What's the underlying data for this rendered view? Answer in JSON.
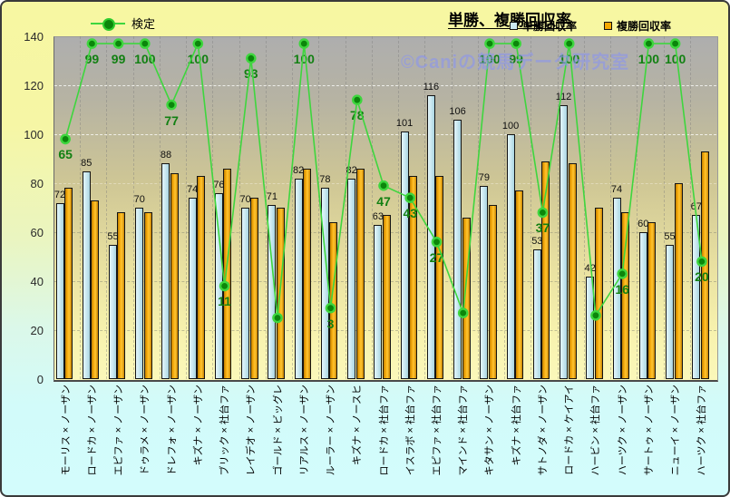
{
  "title": "単勝、複勝回収率",
  "watermark": "©Caniの競馬データ研究室",
  "legend": {
    "test": "検定",
    "win": "単勝回収率",
    "place": "複勝回収率"
  },
  "colors": {
    "line": "#3ed63e",
    "dot": "#0b860b",
    "test_label": "#128012",
    "bar_win": "#cdeaf2",
    "bar_place": "#f5a800",
    "watermark": "#8b95ee"
  },
  "chart_data": {
    "type": "bar",
    "title": "単勝、複勝回収率",
    "ylim": [
      0,
      140
    ],
    "yticks": [
      0,
      20,
      40,
      60,
      80,
      100,
      120,
      140
    ],
    "grid": true,
    "legend_position": "top",
    "categories": [
      "モーリス × ノーザン",
      "ロードカ × ノーザン",
      "エピファ × ノーザン",
      "ドゥラメ × ノーザン",
      "ドレフォ × ノーザン",
      "キズナ × ノーザン",
      "ブリック × 社台ファ",
      "レイデオ × ノーザン",
      "ゴールド × ビッグレ",
      "リアルス × ノーザン",
      "ルーラー × ノーザン",
      "キズナ × ノースヒ",
      "ロードカ × 社台ファ",
      "イスラボ × 社台ファ",
      "エピファ × 社台ファ",
      "マインド × 社台ファ",
      "キタサン × ノーザン",
      "キズナ × 社台ファ",
      "サトノダ × ノーザン",
      "ロードカ × ケイアイ",
      "ハービン × 社台ファ",
      "ハーツク × ノーザン",
      "サートゥ × ノーザン",
      "ニューイ × ノーザン",
      "ハーツク × 社台ファ"
    ],
    "series": [
      {
        "name": "単勝回収率",
        "type": "bar",
        "labeled": true,
        "values": [
          72,
          85,
          55,
          70,
          88,
          74,
          76,
          70,
          71,
          82,
          78,
          82,
          63,
          101,
          116,
          106,
          79,
          100,
          53,
          112,
          42,
          74,
          60,
          55,
          67
        ]
      },
      {
        "name": "複勝回収率",
        "type": "bar",
        "labeled": false,
        "values": [
          78,
          73,
          68,
          68,
          84,
          83,
          86,
          74,
          70,
          86,
          64,
          86,
          67,
          83,
          83,
          66,
          71,
          77,
          89,
          88,
          70,
          68,
          64,
          80,
          93
        ]
      },
      {
        "name": "検定",
        "type": "line",
        "labels": [
          65,
          99,
          99,
          100,
          77,
          100,
          11,
          93,
          null,
          100,
          3,
          78,
          47,
          43,
          27,
          null,
          100,
          99,
          37,
          100,
          null,
          16,
          100,
          100,
          20
        ],
        "plotted_positions": [
          98,
          137,
          137,
          137,
          112,
          137,
          38,
          131,
          25,
          137,
          29,
          114,
          79,
          74,
          56,
          27,
          137,
          137,
          68,
          137,
          26,
          43,
          137,
          137,
          48
        ]
      }
    ]
  }
}
